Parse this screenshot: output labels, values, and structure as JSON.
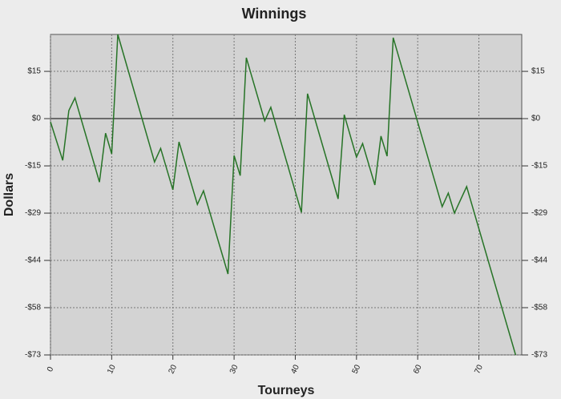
{
  "chart_data": {
    "type": "line",
    "title": "Winnings",
    "x_label": "Tourneys",
    "y_label": "Dollars",
    "x": [
      0,
      2,
      3,
      4,
      8,
      9,
      10,
      11,
      17,
      18,
      20,
      21,
      24,
      25,
      29,
      30,
      31,
      32,
      35,
      36,
      41,
      42,
      47,
      48,
      50,
      51,
      53,
      54,
      55,
      56,
      64,
      65,
      66,
      68,
      76
    ],
    "series": [
      {
        "name": "Winnings",
        "color": "#267326",
        "values": [
          -1,
          -12.9,
          2.5,
          6.4,
          -19.6,
          -4.5,
          -10.9,
          26,
          -13.4,
          -9.2,
          -22,
          -7.2,
          -26.5,
          -22.3,
          -48,
          -11.4,
          -17.6,
          18.8,
          -0.7,
          3.5,
          -29,
          7.7,
          -24.8,
          1.2,
          -11.9,
          -7.7,
          -20.5,
          -5.4,
          -11.6,
          25,
          -27.2,
          -23,
          -29.2,
          -21,
          -73
        ]
      }
    ],
    "xlim": [
      0,
      77
    ],
    "xticks": [
      0,
      10,
      20,
      30,
      40,
      50,
      60,
      70
    ],
    "ylim": [
      -73,
      26
    ],
    "yticks": [
      {
        "value": 14.6,
        "label": "$15"
      },
      {
        "value": 0,
        "label": "$0"
      },
      {
        "value": -14.6,
        "label": "-$15"
      },
      {
        "value": -29.2,
        "label": "-$29"
      },
      {
        "value": -43.8,
        "label": "-$44"
      },
      {
        "value": -58.4,
        "label": "-$58"
      },
      {
        "value": -73,
        "label": "-$73"
      }
    ],
    "grid": true
  }
}
